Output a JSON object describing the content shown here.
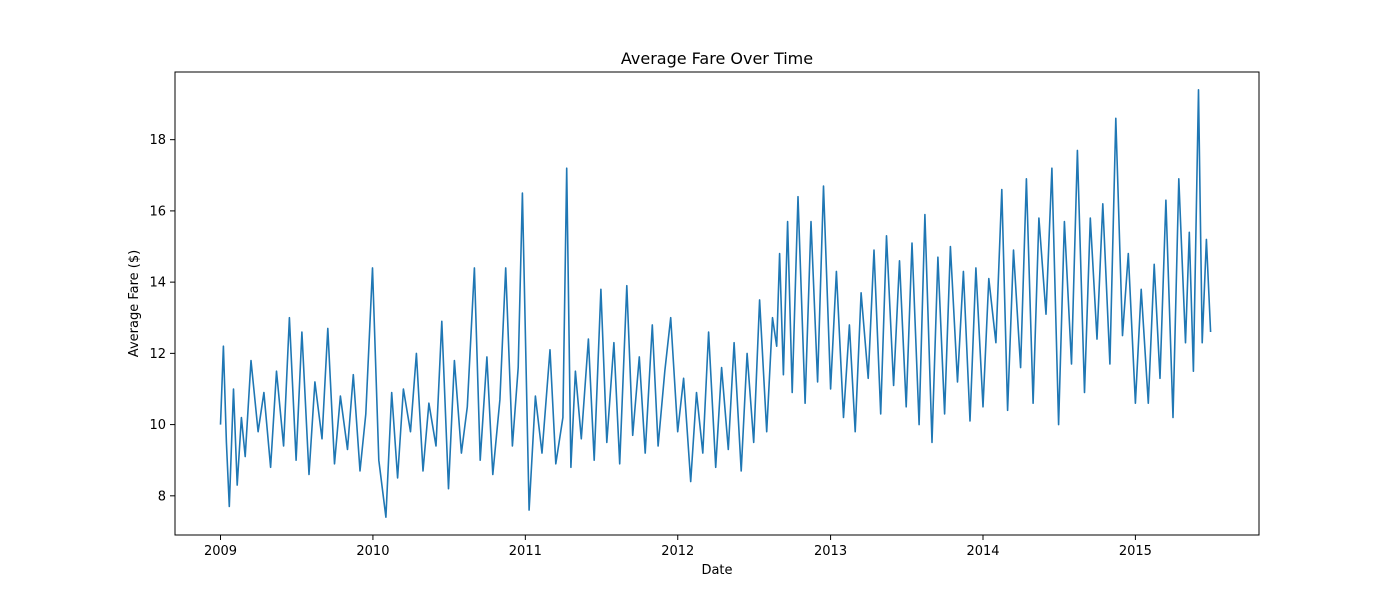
{
  "chart_data": {
    "type": "line",
    "title": "Average Fare Over Time",
    "xlabel": "Date",
    "ylabel": "Average Fare ($)",
    "x_range": [
      "2008-09-14",
      "2015-10-24"
    ],
    "ylim": [
      6.9,
      19.9
    ],
    "x_ticks": [
      {
        "date": "2009-01-01",
        "label": "2009"
      },
      {
        "date": "2010-01-01",
        "label": "2010"
      },
      {
        "date": "2011-01-01",
        "label": "2011"
      },
      {
        "date": "2012-01-01",
        "label": "2012"
      },
      {
        "date": "2013-01-01",
        "label": "2013"
      },
      {
        "date": "2014-01-01",
        "label": "2014"
      },
      {
        "date": "2015-01-01",
        "label": "2015"
      }
    ],
    "y_ticks": [
      {
        "value": 8,
        "label": "8"
      },
      {
        "value": 10,
        "label": "10"
      },
      {
        "value": 12,
        "label": "12"
      },
      {
        "value": 14,
        "label": "14"
      },
      {
        "value": 16,
        "label": "16"
      },
      {
        "value": 18,
        "label": "18"
      }
    ],
    "grid": false,
    "series": [
      {
        "color": "#1f77b4",
        "x": [
          "2009-01-01",
          "2009-01-08",
          "2009-01-15",
          "2009-01-22",
          "2009-02-01",
          "2009-02-10",
          "2009-02-20",
          "2009-03-01",
          "2009-03-15",
          "2009-04-01",
          "2009-04-15",
          "2009-05-01",
          "2009-05-15",
          "2009-06-01",
          "2009-06-15",
          "2009-07-01",
          "2009-07-15",
          "2009-08-01",
          "2009-08-15",
          "2009-09-01",
          "2009-09-15",
          "2009-10-01",
          "2009-10-15",
          "2009-11-01",
          "2009-11-15",
          "2009-12-01",
          "2009-12-15",
          "2009-12-31",
          "2010-01-15",
          "2010-02-01",
          "2010-02-15",
          "2010-03-01",
          "2010-03-15",
          "2010-04-01",
          "2010-04-15",
          "2010-05-01",
          "2010-05-15",
          "2010-06-01",
          "2010-06-15",
          "2010-07-01",
          "2010-07-15",
          "2010-08-01",
          "2010-08-15",
          "2010-09-01",
          "2010-09-15",
          "2010-10-01",
          "2010-10-15",
          "2010-11-01",
          "2010-11-15",
          "2010-12-01",
          "2010-12-15",
          "2010-12-25",
          "2011-01-10",
          "2011-01-25",
          "2011-02-10",
          "2011-03-01",
          "2011-03-15",
          "2011-04-01",
          "2011-04-10",
          "2011-04-20",
          "2011-05-01",
          "2011-05-15",
          "2011-06-01",
          "2011-06-15",
          "2011-07-01",
          "2011-07-15",
          "2011-08-01",
          "2011-08-15",
          "2011-09-01",
          "2011-09-15",
          "2011-10-01",
          "2011-10-15",
          "2011-11-01",
          "2011-11-15",
          "2011-12-01",
          "2011-12-15",
          "2012-01-01",
          "2012-01-15",
          "2012-02-01",
          "2012-02-15",
          "2012-03-01",
          "2012-03-15",
          "2012-04-01",
          "2012-04-15",
          "2012-05-01",
          "2012-05-15",
          "2012-06-01",
          "2012-06-15",
          "2012-07-01",
          "2012-07-15",
          "2012-08-01",
          "2012-08-15",
          "2012-08-25",
          "2012-09-01",
          "2012-09-10",
          "2012-09-20",
          "2012-10-01",
          "2012-10-15",
          "2012-11-01",
          "2012-11-15",
          "2012-12-01",
          "2012-12-15",
          "2013-01-01",
          "2013-01-15",
          "2013-02-01",
          "2013-02-15",
          "2013-03-01",
          "2013-03-15",
          "2013-04-01",
          "2013-04-15",
          "2013-05-01",
          "2013-05-15",
          "2013-06-01",
          "2013-06-15",
          "2013-07-01",
          "2013-07-15",
          "2013-08-01",
          "2013-08-15",
          "2013-09-01",
          "2013-09-15",
          "2013-10-01",
          "2013-10-15",
          "2013-11-01",
          "2013-11-15",
          "2013-12-01",
          "2013-12-15",
          "2014-01-01",
          "2014-01-15",
          "2014-02-01",
          "2014-02-15",
          "2014-03-01",
          "2014-03-15",
          "2014-04-01",
          "2014-04-15",
          "2014-05-01",
          "2014-05-15",
          "2014-06-01",
          "2014-06-15",
          "2014-07-01",
          "2014-07-15",
          "2014-08-01",
          "2014-08-15",
          "2014-09-01",
          "2014-09-15",
          "2014-10-01",
          "2014-10-15",
          "2014-11-01",
          "2014-11-15",
          "2014-12-01",
          "2014-12-15",
          "2015-01-01",
          "2015-01-15",
          "2015-02-01",
          "2015-02-15",
          "2015-03-01",
          "2015-03-15",
          "2015-04-01",
          "2015-04-15",
          "2015-05-01",
          "2015-05-10",
          "2015-05-20",
          "2015-06-01",
          "2015-06-10",
          "2015-06-20",
          "2015-06-30"
        ],
        "y": [
          10.0,
          12.2,
          9.5,
          7.7,
          11.0,
          8.3,
          10.2,
          9.1,
          11.8,
          9.8,
          10.9,
          8.8,
          11.5,
          9.4,
          13.0,
          9.0,
          12.6,
          8.6,
          11.2,
          9.6,
          12.7,
          8.9,
          10.8,
          9.3,
          11.4,
          8.7,
          10.3,
          14.4,
          9.0,
          7.4,
          10.9,
          8.5,
          11.0,
          9.8,
          12.0,
          8.7,
          10.6,
          9.4,
          12.9,
          8.2,
          11.8,
          9.2,
          10.5,
          14.4,
          9.0,
          11.9,
          8.6,
          10.7,
          14.4,
          9.4,
          11.6,
          16.5,
          7.6,
          10.8,
          9.2,
          12.1,
          8.9,
          10.2,
          17.2,
          8.8,
          11.5,
          9.6,
          12.4,
          9.0,
          13.8,
          9.5,
          12.3,
          8.9,
          13.9,
          9.7,
          11.9,
          9.2,
          12.8,
          9.4,
          11.5,
          13.0,
          9.8,
          11.3,
          8.4,
          10.9,
          9.2,
          12.6,
          8.8,
          11.6,
          9.3,
          12.3,
          8.7,
          12.0,
          9.5,
          13.5,
          9.8,
          13.0,
          12.2,
          14.8,
          11.4,
          15.7,
          10.9,
          16.4,
          10.6,
          15.7,
          11.2,
          16.7,
          11.0,
          14.3,
          10.2,
          12.8,
          9.8,
          13.7,
          11.3,
          14.9,
          10.3,
          15.3,
          11.1,
          14.6,
          10.5,
          15.1,
          10.0,
          15.9,
          9.5,
          14.7,
          10.3,
          15.0,
          11.2,
          14.3,
          10.1,
          14.4,
          10.5,
          14.1,
          12.3,
          16.6,
          10.4,
          14.9,
          11.6,
          16.9,
          10.6,
          15.8,
          13.1,
          17.2,
          10.0,
          15.7,
          11.7,
          17.7,
          10.9,
          15.8,
          12.4,
          16.2,
          11.7,
          18.6,
          12.5,
          14.8,
          10.6,
          13.8,
          10.6,
          14.5,
          11.3,
          16.3,
          10.2,
          16.9,
          12.3,
          15.4,
          11.5,
          19.4,
          12.3,
          15.2,
          12.6
        ]
      }
    ]
  }
}
